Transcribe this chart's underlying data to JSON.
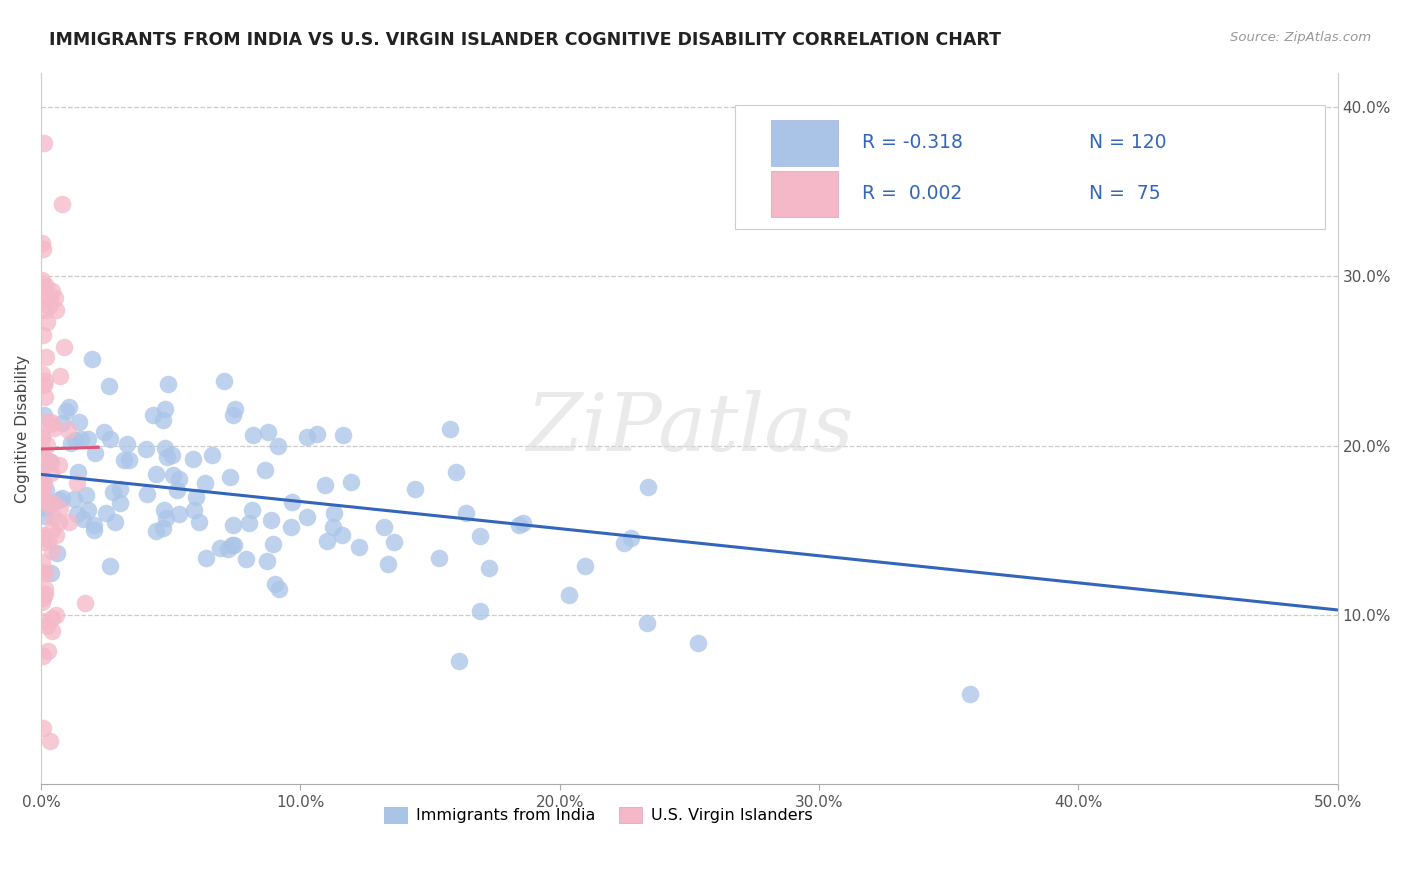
{
  "title": "IMMIGRANTS FROM INDIA VS U.S. VIRGIN ISLANDER COGNITIVE DISABILITY CORRELATION CHART",
  "source": "Source: ZipAtlas.com",
  "ylabel": "Cognitive Disability",
  "xlim": [
    0.0,
    0.5
  ],
  "ylim": [
    0.0,
    0.42
  ],
  "xticklabels": [
    "0.0%",
    "10.0%",
    "20.0%",
    "30.0%",
    "40.0%",
    "50.0%"
  ],
  "xtick_vals": [
    0.0,
    0.1,
    0.2,
    0.3,
    0.4,
    0.5
  ],
  "ytick_right_labels": [
    "10.0%",
    "20.0%",
    "30.0%",
    "40.0%"
  ],
  "ytick_right_values": [
    0.1,
    0.2,
    0.3,
    0.4
  ],
  "grid_color": "#cccccc",
  "blue_color": "#aac4e8",
  "pink_color": "#f4b8c8",
  "blue_line_color": "#3366bb",
  "pink_line_color": "#dd5577",
  "legend_text_color": "#3366bb",
  "watermark": "ZiPatlas",
  "blue_trend_x0": 0.0,
  "blue_trend_y0": 0.183,
  "blue_trend_x1": 0.5,
  "blue_trend_y1": 0.103,
  "pink_trend_x0": 0.0,
  "pink_trend_y0": 0.198,
  "pink_trend_x1": 0.022,
  "pink_trend_y1": 0.199,
  "india_seed": 12345,
  "virgin_seed": 67890
}
